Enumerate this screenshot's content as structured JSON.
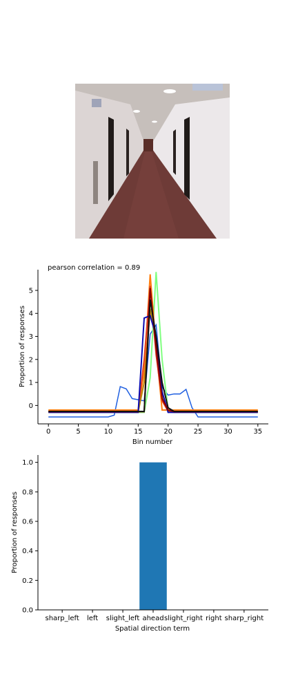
{
  "photo": {
    "colors": {
      "wall": "#d9d2cf",
      "ceiling": "#c9c3bf",
      "carpet": "#6b3a35",
      "door": "#1f1a18"
    }
  },
  "chart_data": [
    {
      "type": "line",
      "title": "pearson correlation = 0.89",
      "xlabel": "Bin number",
      "ylabel": "Proportion of responses",
      "xlim": [
        -1.75,
        36.75
      ],
      "ylim": [
        -0.8,
        5.9
      ],
      "xticks": [
        0,
        5,
        10,
        15,
        20,
        25,
        30,
        35
      ],
      "yticks": [
        0,
        1,
        2,
        3,
        4,
        5
      ],
      "grid": false,
      "x": [
        0,
        1,
        2,
        3,
        4,
        5,
        6,
        7,
        8,
        9,
        10,
        11,
        12,
        13,
        14,
        15,
        16,
        17,
        18,
        19,
        20,
        21,
        22,
        23,
        24,
        25,
        26,
        27,
        28,
        29,
        30,
        31,
        32,
        33,
        34,
        35
      ],
      "series": [
        {
          "color": "#1f5fe0",
          "values": [
            -0.5,
            -0.5,
            -0.5,
            -0.5,
            -0.5,
            -0.5,
            -0.5,
            -0.5,
            -0.5,
            -0.5,
            -0.5,
            -0.42,
            0.82,
            0.72,
            0.3,
            0.25,
            0.2,
            3.1,
            3.5,
            0.8,
            0.45,
            0.5,
            0.5,
            0.7,
            -0.1,
            -0.5,
            -0.5,
            -0.5,
            -0.5,
            -0.5,
            -0.5,
            -0.5,
            -0.5,
            -0.5,
            -0.5,
            -0.5
          ]
        },
        {
          "color": "#80ff80",
          "values": [
            -0.3,
            -0.3,
            -0.3,
            -0.3,
            -0.3,
            -0.3,
            -0.3,
            -0.3,
            -0.3,
            -0.3,
            -0.3,
            -0.3,
            -0.3,
            -0.3,
            -0.3,
            -0.3,
            -0.3,
            1.2,
            5.8,
            2.0,
            -0.2,
            -0.3,
            -0.3,
            -0.3,
            -0.3,
            -0.3,
            -0.3,
            -0.3,
            -0.3,
            -0.3,
            -0.3,
            -0.3,
            -0.3,
            -0.3,
            -0.3,
            -0.3
          ]
        },
        {
          "color": "#ff7f0e",
          "values": [
            -0.2,
            -0.2,
            -0.2,
            -0.2,
            -0.2,
            -0.2,
            -0.2,
            -0.2,
            -0.2,
            -0.2,
            -0.2,
            -0.2,
            -0.2,
            -0.2,
            -0.2,
            -0.2,
            1.5,
            5.7,
            2.5,
            -0.2,
            -0.2,
            -0.2,
            -0.2,
            -0.2,
            -0.2,
            -0.2,
            -0.2,
            -0.2,
            -0.2,
            -0.2,
            -0.2,
            -0.2,
            -0.2,
            -0.2,
            -0.2,
            -0.2
          ]
        },
        {
          "color": "#e04020",
          "values": [
            -0.25,
            -0.25,
            -0.25,
            -0.25,
            -0.25,
            -0.25,
            -0.25,
            -0.25,
            -0.25,
            -0.25,
            -0.25,
            -0.25,
            -0.25,
            -0.25,
            -0.25,
            -0.25,
            2.0,
            5.2,
            2.2,
            0.2,
            -0.25,
            -0.25,
            -0.25,
            -0.25,
            -0.25,
            -0.25,
            -0.25,
            -0.25,
            -0.25,
            -0.25,
            -0.25,
            -0.25,
            -0.25,
            -0.25,
            -0.25,
            -0.25
          ]
        },
        {
          "color": "#b8860b",
          "values": [
            -0.28,
            -0.28,
            -0.28,
            -0.28,
            -0.28,
            -0.28,
            -0.28,
            -0.28,
            -0.28,
            -0.28,
            -0.28,
            -0.28,
            -0.28,
            -0.28,
            -0.28,
            -0.28,
            1.0,
            4.2,
            2.8,
            0.5,
            -0.28,
            -0.28,
            -0.28,
            -0.28,
            -0.28,
            -0.28,
            -0.28,
            -0.28,
            -0.28,
            -0.28,
            -0.28,
            -0.28,
            -0.28,
            -0.28,
            -0.28,
            -0.28
          ]
        },
        {
          "color": "#0b0bb0",
          "values": [
            -0.3,
            -0.3,
            -0.3,
            -0.3,
            -0.3,
            -0.3,
            -0.3,
            -0.3,
            -0.3,
            -0.3,
            -0.3,
            -0.3,
            -0.3,
            -0.3,
            -0.3,
            -0.3,
            3.8,
            3.9,
            3.0,
            0.6,
            -0.3,
            -0.3,
            -0.3,
            -0.3,
            -0.3,
            -0.3,
            -0.3,
            -0.3,
            -0.3,
            -0.3,
            -0.3,
            -0.3,
            -0.3,
            -0.3,
            -0.3,
            -0.3
          ]
        },
        {
          "color": "#8b0000",
          "values": [
            -0.27,
            -0.27,
            -0.27,
            -0.27,
            -0.27,
            -0.27,
            -0.27,
            -0.27,
            -0.27,
            -0.27,
            -0.27,
            -0.27,
            -0.27,
            -0.27,
            -0.27,
            -0.27,
            -0.27,
            5.1,
            2.5,
            0.3,
            -0.2,
            -0.27,
            -0.27,
            -0.27,
            -0.27,
            -0.27,
            -0.27,
            -0.27,
            -0.27,
            -0.27,
            -0.27,
            -0.27,
            -0.27,
            -0.27,
            -0.27,
            -0.27
          ]
        },
        {
          "color": "#111111",
          "values": [
            -0.26,
            -0.26,
            -0.26,
            -0.26,
            -0.26,
            -0.26,
            -0.26,
            -0.26,
            -0.26,
            -0.26,
            -0.26,
            -0.26,
            -0.26,
            -0.26,
            -0.26,
            -0.26,
            -0.26,
            4.6,
            3.0,
            1.0,
            -0.1,
            -0.26,
            -0.26,
            -0.26,
            -0.26,
            -0.26,
            -0.26,
            -0.26,
            -0.26,
            -0.26,
            -0.26,
            -0.26,
            -0.26,
            -0.26,
            -0.26,
            -0.26
          ]
        }
      ]
    },
    {
      "type": "bar",
      "title": "",
      "xlabel": "Spatial direction term",
      "ylabel": "Proportion of responses",
      "categories": [
        "sharp_left",
        "left",
        "slight_left",
        "ahead",
        "slight_right",
        "right",
        "sharp_right"
      ],
      "values": [
        0,
        0,
        0,
        1.0,
        0,
        0,
        0
      ],
      "ylim": [
        0,
        1.05
      ],
      "yticks": [
        "0.0",
        "0.2",
        "0.4",
        "0.6",
        "0.8",
        "1.0"
      ],
      "color": "#1f77b4",
      "grid": false
    }
  ]
}
